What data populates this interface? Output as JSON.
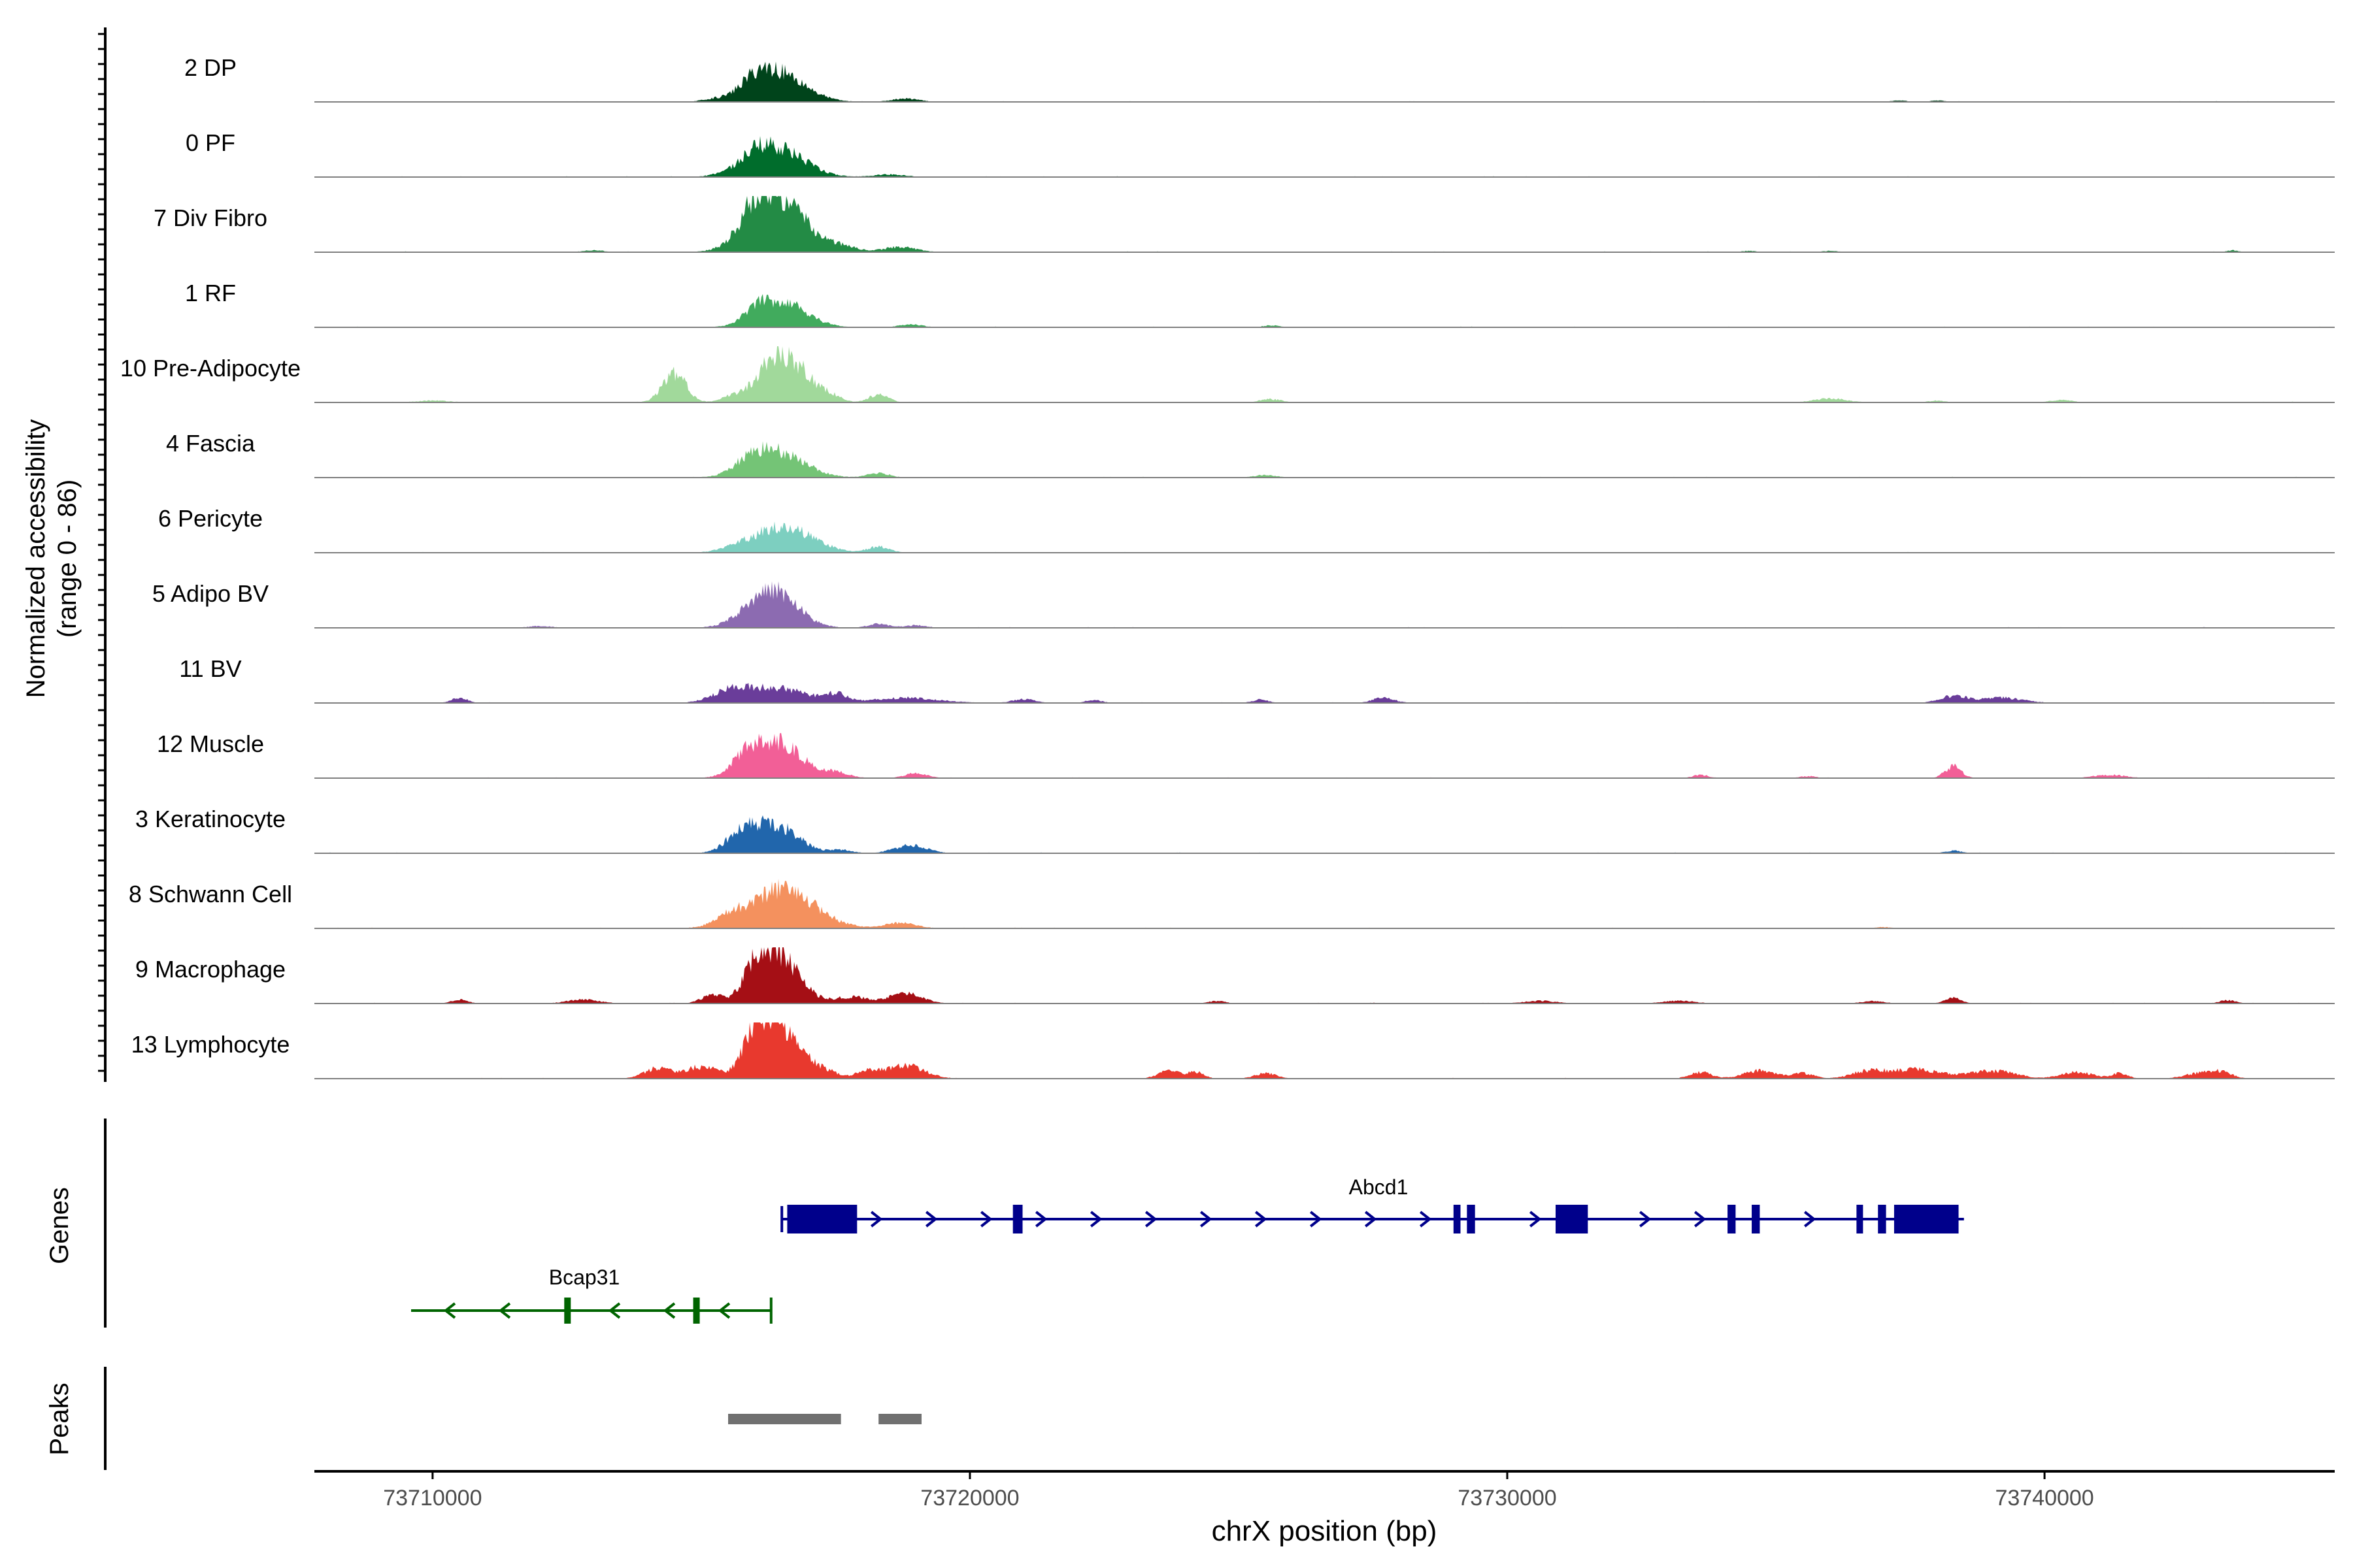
{
  "chart_data": {
    "type": "area",
    "title": "",
    "chromosome": "chrX",
    "xlabel": "chrX position (bp)",
    "ylabel": "Normalized accessibility",
    "ylabel_range": "(range 0 - 86)",
    "xlim": [
      73707800,
      73745400
    ],
    "x_ticks": [
      73710000,
      73720000,
      73730000,
      73740000
    ],
    "x_tick_labels": [
      "73710000",
      "73720000",
      "73730000",
      "73740000"
    ],
    "ylim": [
      0,
      86
    ],
    "genes_label": "Genes",
    "peaks_label": "Peaks",
    "tracks": [
      {
        "name": "2 DP",
        "color": "#00441b",
        "peaks": [
          [
            73716400,
            46,
            500
          ],
          [
            73716000,
            14,
            250
          ],
          [
            73718800,
            5,
            250
          ],
          [
            73715200,
            3,
            200
          ],
          [
            73737300,
            2,
            150
          ],
          [
            73738000,
            2,
            150
          ]
        ]
      },
      {
        "name": "0 PF",
        "color": "#006d2c",
        "peaks": [
          [
            73716400,
            44,
            500
          ],
          [
            73716000,
            14,
            250
          ],
          [
            73715400,
            3,
            200
          ],
          [
            73718500,
            4,
            300
          ]
        ]
      },
      {
        "name": "7 Div Fibro",
        "color": "#238b45",
        "peaks": [
          [
            73716400,
            86,
            500
          ],
          [
            73716000,
            26,
            250
          ],
          [
            73717600,
            8,
            300
          ],
          [
            73718700,
            8,
            300
          ],
          [
            73713000,
            3,
            200
          ],
          [
            73743500,
            3,
            100
          ],
          [
            73736000,
            2,
            150
          ],
          [
            73734500,
            2,
            150
          ]
        ]
      },
      {
        "name": "1 RF",
        "color": "#41ab5d",
        "peaks": [
          [
            73716500,
            40,
            450
          ],
          [
            73716000,
            14,
            200
          ],
          [
            73718900,
            5,
            200
          ],
          [
            73725600,
            3,
            150
          ]
        ]
      },
      {
        "name": "10 Pre-Adipocyte",
        "color": "#a1d99b",
        "peaks": [
          [
            73714500,
            44,
            220
          ],
          [
            73716300,
            58,
            300
          ],
          [
            73716800,
            46,
            300
          ],
          [
            73717400,
            10,
            200
          ],
          [
            73718300,
            12,
            180
          ],
          [
            73715600,
            10,
            200
          ],
          [
            73710000,
            3,
            300
          ],
          [
            73725600,
            5,
            200
          ],
          [
            73736000,
            6,
            300
          ],
          [
            73740300,
            4,
            200
          ],
          [
            73738000,
            3,
            150
          ]
        ]
      },
      {
        "name": "4 Fascia",
        "color": "#74c476",
        "peaks": [
          [
            73716400,
            40,
            500
          ],
          [
            73715900,
            14,
            250
          ],
          [
            73718300,
            7,
            200
          ],
          [
            73725500,
            4,
            200
          ]
        ]
      },
      {
        "name": "6 Pericyte",
        "color": "#7dcfc0",
        "peaks": [
          [
            73716500,
            40,
            550
          ],
          [
            73718300,
            9,
            200
          ],
          [
            73715600,
            5,
            200
          ]
        ]
      },
      {
        "name": "5 Adipo BV",
        "color": "#8c6bb1",
        "peaks": [
          [
            73716300,
            60,
            450
          ],
          [
            73718300,
            6,
            200
          ],
          [
            73719000,
            4,
            200
          ],
          [
            73712000,
            3,
            200
          ]
        ]
      },
      {
        "name": "11 BV",
        "color": "#6a3d9a",
        "peaks": [
          [
            73716300,
            24,
            600
          ],
          [
            73715500,
            12,
            300
          ],
          [
            73717500,
            12,
            200
          ],
          [
            73718800,
            8,
            600
          ],
          [
            73710500,
            8,
            150
          ],
          [
            73727700,
            8,
            200
          ],
          [
            73738300,
            10,
            250
          ],
          [
            73739200,
            8,
            400
          ],
          [
            73721000,
            6,
            200
          ],
          [
            73722300,
            5,
            150
          ],
          [
            73725400,
            5,
            150
          ]
        ]
      },
      {
        "name": "12 Muscle",
        "color": "#f25f97",
        "peaks": [
          [
            73716400,
            56,
            450
          ],
          [
            73715800,
            20,
            250
          ],
          [
            73717500,
            8,
            250
          ],
          [
            73719000,
            8,
            200
          ],
          [
            73738300,
            18,
            150
          ],
          [
            73733600,
            5,
            150
          ],
          [
            73741200,
            5,
            300
          ],
          [
            73735600,
            3,
            150
          ]
        ]
      },
      {
        "name": "3 Keratinocyte",
        "color": "#2166ac",
        "peaks": [
          [
            73716300,
            46,
            450
          ],
          [
            73715700,
            18,
            250
          ],
          [
            73718900,
            12,
            300
          ],
          [
            73717600,
            5,
            200
          ],
          [
            73738300,
            4,
            150
          ]
        ]
      },
      {
        "name": "8 Schwann Cell",
        "color": "#f4915e",
        "peaks": [
          [
            73716500,
            60,
            600
          ],
          [
            73715500,
            10,
            250
          ],
          [
            73718700,
            8,
            300
          ],
          [
            73737000,
            2,
            150
          ]
        ]
      },
      {
        "name": "9 Macrophage",
        "color": "#a50f15",
        "peaks": [
          [
            73716400,
            78,
            400
          ],
          [
            73716000,
            26,
            200
          ],
          [
            73715200,
            12,
            200
          ],
          [
            73718800,
            16,
            300
          ],
          [
            73717800,
            10,
            300
          ],
          [
            73712800,
            6,
            300
          ],
          [
            73710500,
            6,
            150
          ],
          [
            73738300,
            8,
            150
          ],
          [
            73743400,
            5,
            150
          ],
          [
            73736800,
            4,
            200
          ],
          [
            73730600,
            4,
            300
          ],
          [
            73733200,
            4,
            300
          ],
          [
            73724600,
            4,
            150
          ]
        ]
      },
      {
        "name": "13 Lymphocyte",
        "color": "#e8392e",
        "peaks": [
          [
            73716400,
            86,
            400
          ],
          [
            73716000,
            40,
            200
          ],
          [
            73715000,
            18,
            300
          ],
          [
            73714200,
            16,
            250
          ],
          [
            73718800,
            20,
            350
          ],
          [
            73717300,
            10,
            250
          ],
          [
            73718100,
            12,
            200
          ],
          [
            73723700,
            12,
            200
          ],
          [
            73724200,
            10,
            150
          ],
          [
            73725500,
            8,
            200
          ],
          [
            73733600,
            10,
            200
          ],
          [
            73734700,
            12,
            300
          ],
          [
            73736700,
            10,
            300
          ],
          [
            73737600,
            14,
            500
          ],
          [
            73738800,
            8,
            300
          ],
          [
            73739300,
            8,
            300
          ],
          [
            73740600,
            10,
            300
          ],
          [
            73741400,
            8,
            150
          ],
          [
            73742900,
            8,
            300
          ],
          [
            73743300,
            8,
            200
          ],
          [
            73735500,
            8,
            200
          ]
        ]
      }
    ],
    "genes": [
      {
        "name": "Abcd1",
        "strand": "+",
        "color": "#00008b",
        "start": 73716500,
        "end": 73738500,
        "exons": [
          [
            73716600,
            73717900
          ],
          [
            73720800,
            73720980
          ],
          [
            73729000,
            73729130
          ],
          [
            73729250,
            73729400
          ],
          [
            73730900,
            73731500
          ],
          [
            73734100,
            73734250
          ],
          [
            73734550,
            73734700
          ],
          [
            73736500,
            73736580
          ],
          [
            73736900,
            73737050
          ],
          [
            73737200,
            73738400
          ]
        ]
      },
      {
        "name": "Bcap31",
        "strand": "-",
        "color": "#006400",
        "start": 73709600,
        "end": 73716300,
        "exons": [
          [
            73712450,
            73712550
          ],
          [
            73714850,
            73714950
          ]
        ]
      }
    ],
    "peaks": [
      [
        73715500,
        73717600
      ],
      [
        73718300,
        73719100
      ]
    ]
  }
}
